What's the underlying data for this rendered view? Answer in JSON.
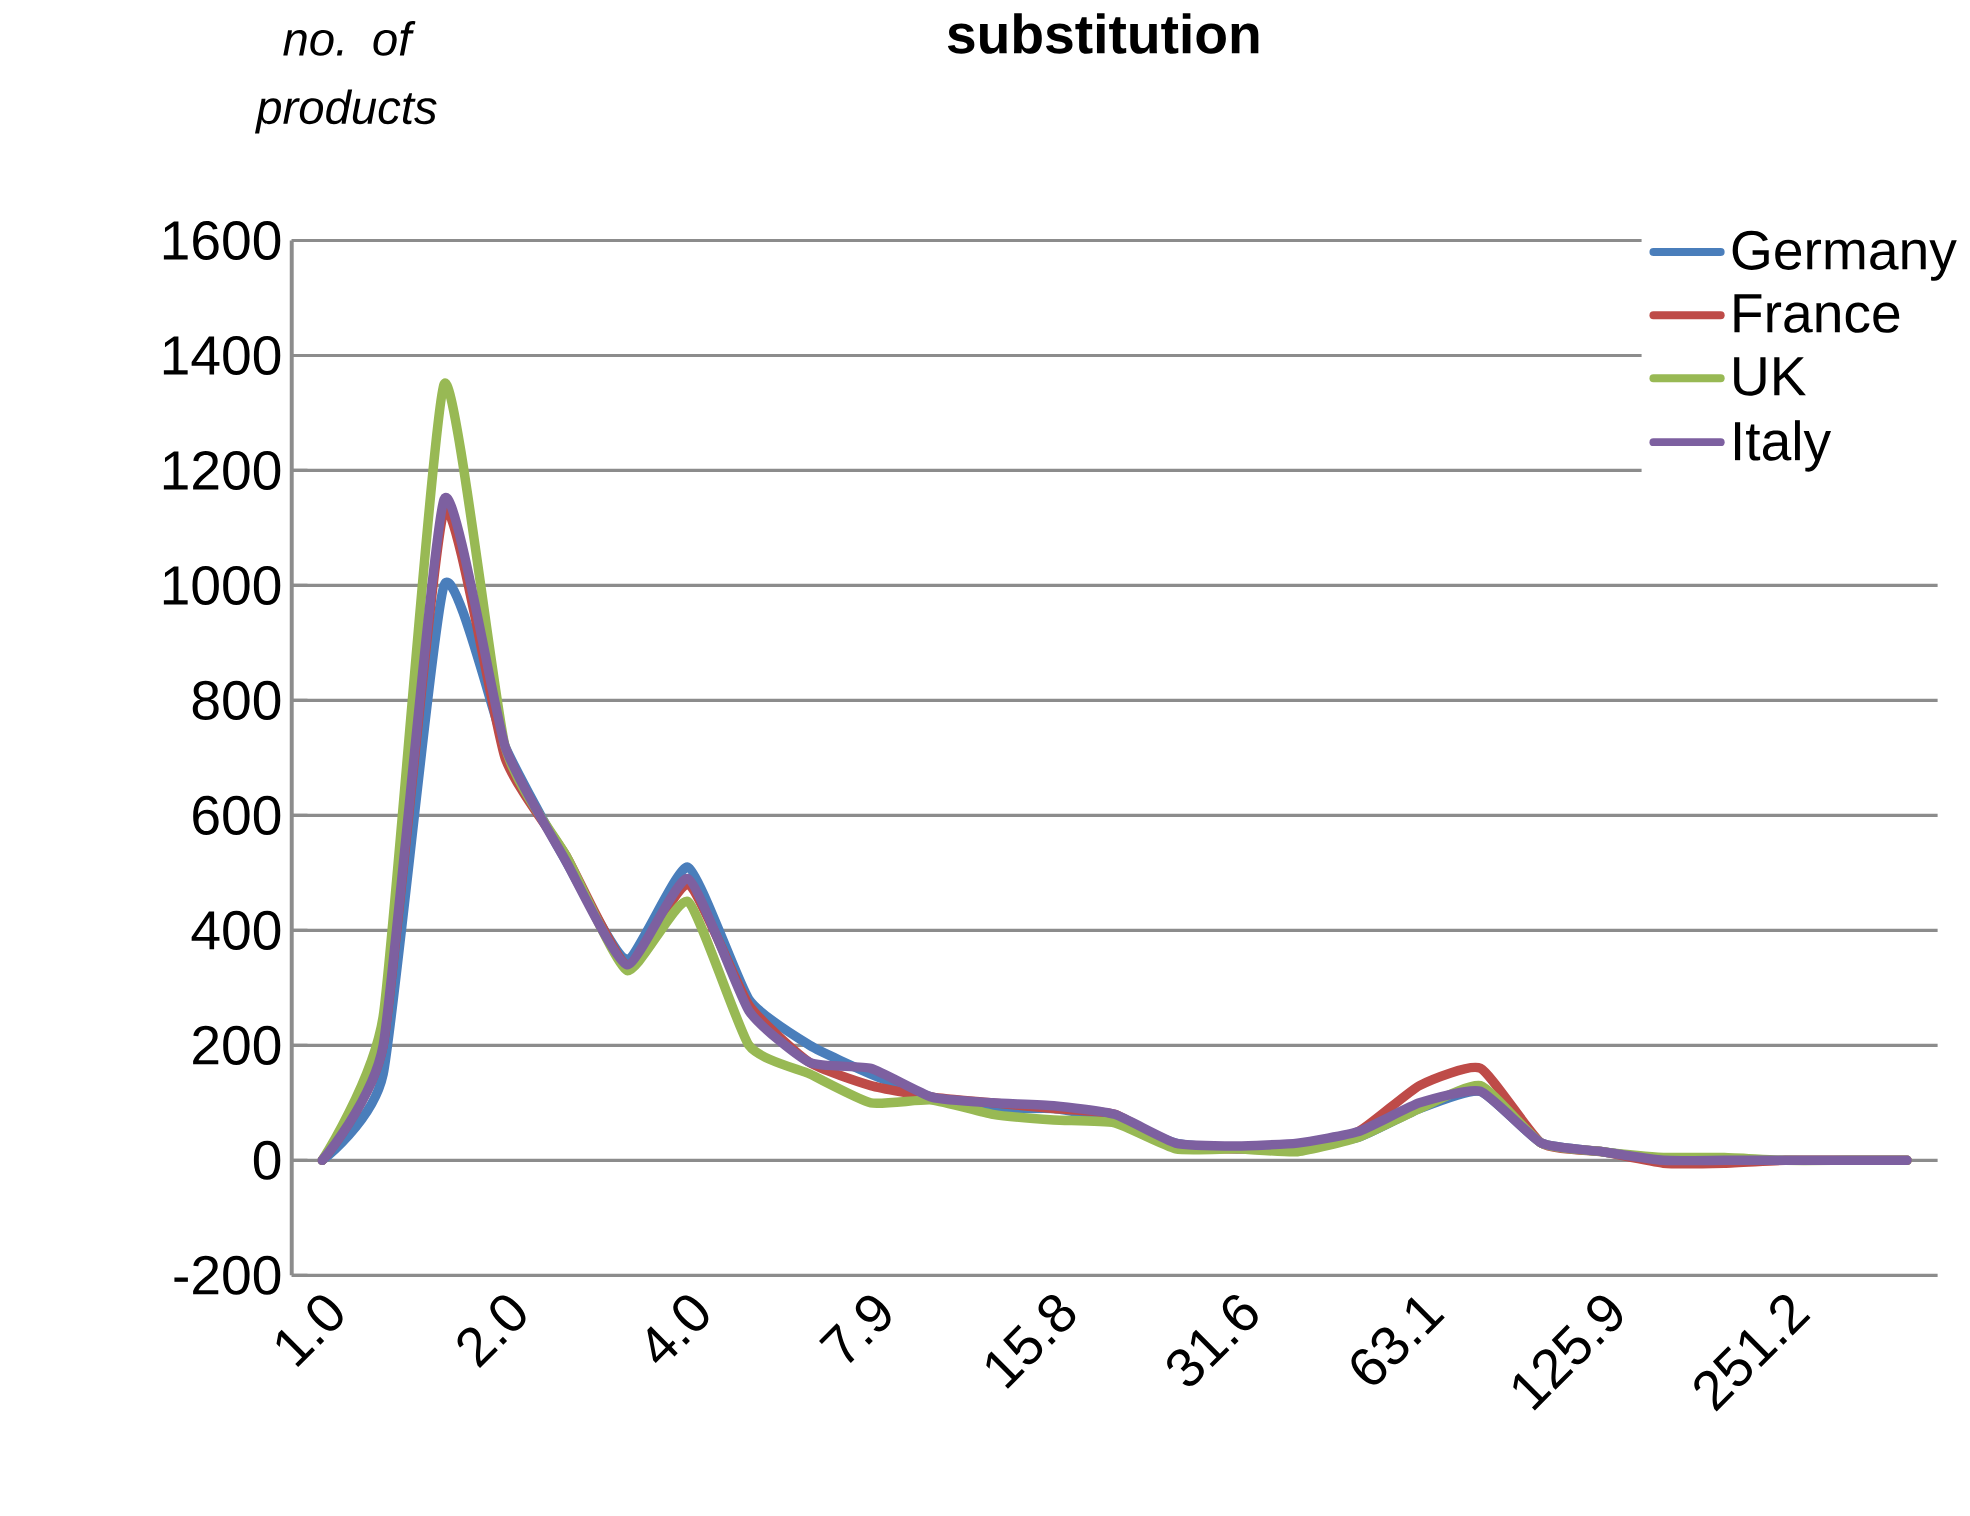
{
  "chart_data": {
    "type": "line",
    "title": "substitution",
    "ylabel": "no. of products",
    "categories": [
      "1.0",
      null,
      null,
      "2.0",
      null,
      null,
      "4.0",
      null,
      null,
      "7.9",
      null,
      null,
      "15.8",
      null,
      null,
      "31.6",
      null,
      null,
      "63.1",
      null,
      null,
      "125.9",
      null,
      null,
      "251.2",
      null,
      null
    ],
    "series": [
      {
        "name": "Germany",
        "color": "#4a7ebb",
        "values": [
          0,
          150,
          1000,
          720,
          520,
          350,
          510,
          280,
          200,
          150,
          110,
          90,
          90,
          70,
          30,
          20,
          25,
          40,
          90,
          120,
          30,
          15,
          0,
          null,
          null,
          null,
          null
        ]
      },
      {
        "name": "France",
        "color": "#be4b48",
        "values": [
          0,
          200,
          1130,
          700,
          530,
          340,
          480,
          270,
          170,
          130,
          110,
          100,
          90,
          80,
          25,
          20,
          25,
          50,
          130,
          160,
          30,
          15,
          -5,
          -5,
          0,
          0,
          0
        ]
      },
      {
        "name": "UK",
        "color": "#98b954",
        "values": [
          0,
          250,
          1350,
          720,
          530,
          330,
          450,
          200,
          150,
          100,
          105,
          80,
          70,
          65,
          20,
          20,
          15,
          40,
          90,
          130,
          30,
          15,
          5,
          5,
          0,
          0,
          0
        ]
      },
      {
        "name": "Italy",
        "color": "#7d60a0",
        "values": [
          0,
          200,
          1150,
          720,
          520,
          340,
          490,
          260,
          170,
          160,
          110,
          100,
          95,
          80,
          30,
          25,
          30,
          50,
          100,
          120,
          30,
          15,
          0,
          0,
          0,
          0,
          0
        ]
      }
    ],
    "ylim": [
      -200,
      1600
    ],
    "yticks": [
      -200,
      0,
      200,
      400,
      600,
      800,
      1000,
      1200,
      1400,
      1600
    ],
    "grid": "y",
    "legend": "top right",
    "marker": "none",
    "line_style": "solid"
  }
}
